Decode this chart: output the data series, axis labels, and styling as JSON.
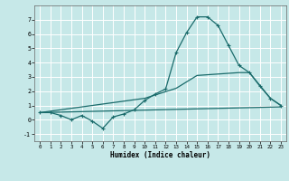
{
  "xlabel": "Humidex (Indice chaleur)",
  "background_color": "#c6e8e8",
  "grid_color": "#ffffff",
  "line_color": "#1a6b6b",
  "xlim": [
    -0.5,
    23.5
  ],
  "ylim": [
    -1.5,
    8.0
  ],
  "yticks": [
    -1,
    0,
    1,
    2,
    3,
    4,
    5,
    6,
    7
  ],
  "xticks": [
    0,
    1,
    2,
    3,
    4,
    5,
    6,
    7,
    8,
    9,
    10,
    11,
    12,
    13,
    14,
    15,
    16,
    17,
    18,
    19,
    20,
    21,
    22,
    23
  ],
  "line1_x": [
    0,
    1,
    2,
    3,
    4,
    5,
    6,
    7,
    8,
    9,
    10,
    11,
    12,
    13,
    14,
    15,
    16,
    17,
    18,
    19,
    20,
    21,
    22,
    23
  ],
  "line1_y": [
    0.5,
    0.5,
    0.3,
    0.0,
    0.3,
    -0.1,
    -0.6,
    0.2,
    0.4,
    0.7,
    1.35,
    1.8,
    2.15,
    4.7,
    6.1,
    7.2,
    7.2,
    6.6,
    5.2,
    3.8,
    3.3,
    2.35,
    1.5,
    1.0
  ],
  "line2_x": [
    0,
    23
  ],
  "line2_y": [
    0.5,
    0.9
  ],
  "line3_x": [
    0,
    10,
    13,
    15,
    19,
    20,
    21,
    22,
    23
  ],
  "line3_y": [
    0.5,
    1.5,
    2.2,
    3.1,
    3.3,
    3.3,
    2.4,
    1.5,
    1.0
  ]
}
